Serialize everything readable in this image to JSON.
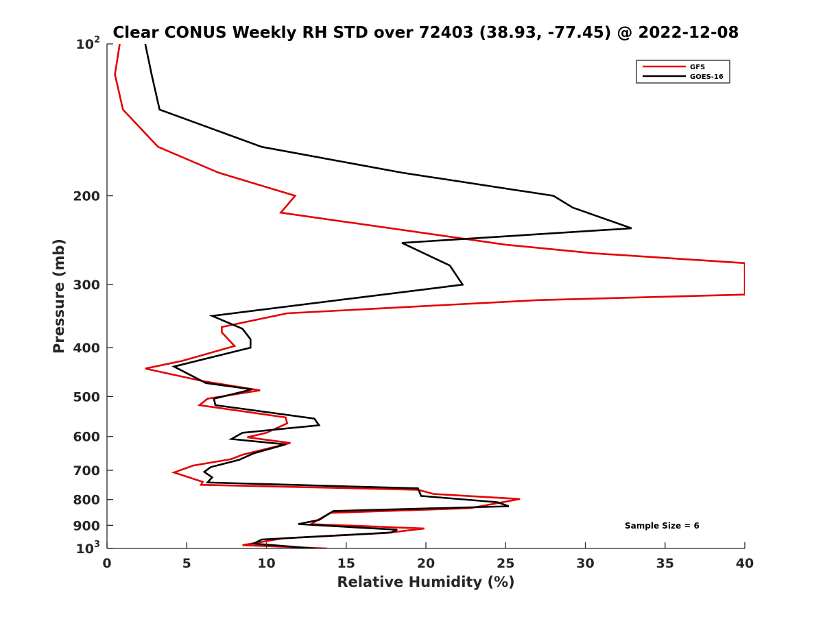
{
  "chart_data": {
    "type": "line",
    "title": "Clear CONUS Weekly RH STD over 72403 (38.93, -77.45) @ 2022-12-08",
    "xlabel": "Relative Humidity (%)",
    "ylabel": "Pressure (mb)",
    "xlim": [
      0,
      40
    ],
    "ylim": [
      100,
      1000
    ],
    "yscale": "log",
    "y_reversed": true,
    "grid": false,
    "legend_position": "top-right",
    "x_ticks": [
      0,
      5,
      10,
      15,
      20,
      25,
      30,
      35,
      40
    ],
    "y_ticks": [
      {
        "value": 100,
        "label": "10",
        "sup": "2"
      },
      {
        "value": 200,
        "label": "200",
        "sup": ""
      },
      {
        "value": 300,
        "label": "300",
        "sup": ""
      },
      {
        "value": 400,
        "label": "400",
        "sup": ""
      },
      {
        "value": 500,
        "label": "500",
        "sup": ""
      },
      {
        "value": 600,
        "label": "600",
        "sup": ""
      },
      {
        "value": 700,
        "label": "700",
        "sup": ""
      },
      {
        "value": 800,
        "label": "800",
        "sup": ""
      },
      {
        "value": 900,
        "label": "900",
        "sup": ""
      },
      {
        "value": 1000,
        "label": "10",
        "sup": "3"
      }
    ],
    "annotation": "Sample Size = 6",
    "series": [
      {
        "name": "GFS",
        "color": "#e30000",
        "points": [
          [
            0.8,
            100
          ],
          [
            0.5,
            115
          ],
          [
            1.0,
            135
          ],
          [
            3.2,
            160
          ],
          [
            7.0,
            180
          ],
          [
            11.8,
            200
          ],
          [
            10.9,
            216
          ],
          [
            25.0,
            250
          ],
          [
            30.5,
            260
          ],
          [
            40.0,
            272
          ],
          [
            40.0,
            314
          ],
          [
            27.0,
            322
          ],
          [
            11.3,
            342
          ],
          [
            7.2,
            364
          ],
          [
            7.2,
            373
          ],
          [
            8.0,
            397
          ],
          [
            4.7,
            425
          ],
          [
            2.4,
            440
          ],
          [
            6.0,
            466
          ],
          [
            9.6,
            486
          ],
          [
            6.3,
            505
          ],
          [
            5.8,
            520
          ],
          [
            11.2,
            550
          ],
          [
            11.3,
            565
          ],
          [
            10.0,
            590
          ],
          [
            8.8,
            602
          ],
          [
            11.5,
            618
          ],
          [
            8.5,
            652
          ],
          [
            7.8,
            665
          ],
          [
            5.4,
            685
          ],
          [
            4.2,
            707
          ],
          [
            6.0,
            738
          ],
          [
            5.9,
            748
          ],
          [
            19.5,
            765
          ],
          [
            20.5,
            780
          ],
          [
            25.9,
            798
          ],
          [
            22.8,
            832
          ],
          [
            14.0,
            850
          ],
          [
            13.1,
            883
          ],
          [
            12.8,
            895
          ],
          [
            19.9,
            913
          ],
          [
            17.5,
            932
          ],
          [
            11.0,
            955
          ],
          [
            8.5,
            985
          ],
          [
            13.8,
            1000
          ]
        ]
      },
      {
        "name": "GOES-16",
        "color": "#000000",
        "points": [
          [
            2.4,
            100
          ],
          [
            2.8,
            115
          ],
          [
            3.3,
            135
          ],
          [
            9.7,
            160
          ],
          [
            18.5,
            180
          ],
          [
            28.0,
            200
          ],
          [
            29.2,
            211
          ],
          [
            32.9,
            232
          ],
          [
            18.5,
            248
          ],
          [
            21.5,
            275
          ],
          [
            22.3,
            300
          ],
          [
            15.2,
            320
          ],
          [
            6.6,
            346
          ],
          [
            8.5,
            367
          ],
          [
            9.0,
            385
          ],
          [
            9.0,
            400
          ],
          [
            4.2,
            436
          ],
          [
            6.2,
            470
          ],
          [
            9.1,
            484
          ],
          [
            6.7,
            505
          ],
          [
            6.8,
            520
          ],
          [
            13.0,
            553
          ],
          [
            13.3,
            570
          ],
          [
            8.5,
            590
          ],
          [
            7.8,
            607
          ],
          [
            11.2,
            622
          ],
          [
            9.2,
            648
          ],
          [
            8.3,
            667
          ],
          [
            6.5,
            690
          ],
          [
            6.1,
            705
          ],
          [
            6.6,
            723
          ],
          [
            6.3,
            740
          ],
          [
            19.5,
            760
          ],
          [
            19.7,
            787
          ],
          [
            24.5,
            810
          ],
          [
            25.2,
            825
          ],
          [
            14.2,
            843
          ],
          [
            13.3,
            878
          ],
          [
            12.0,
            895
          ],
          [
            18.2,
            918
          ],
          [
            17.8,
            930
          ],
          [
            9.7,
            960
          ],
          [
            9.2,
            978
          ],
          [
            13.0,
            1000
          ]
        ]
      }
    ]
  }
}
